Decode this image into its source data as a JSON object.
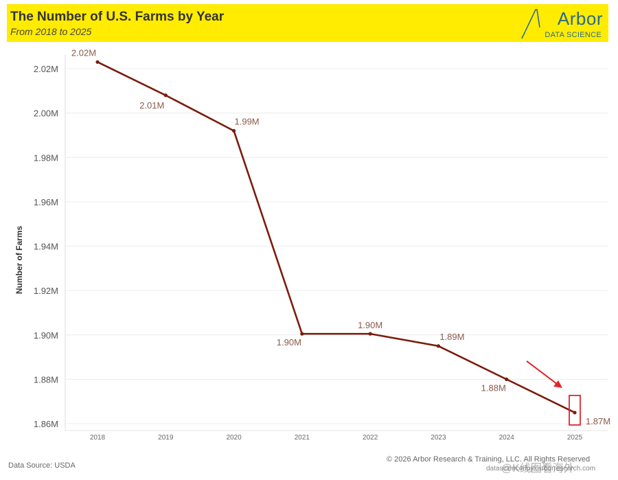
{
  "banner": {
    "title": "The Number of U.S. Farms by Year",
    "subtitle": "From 2018 to 2025",
    "background": "#ffec00"
  },
  "logo": {
    "word": "Arbor",
    "sub": "DATA SCIENCE",
    "color": "#2a6a8c"
  },
  "footer": {
    "source": "Data Source: USDA",
    "copyright": "© 2026 Arbor Research & Training, LLC. All Rights Reserved",
    "site": "datasciencedojo.arborresearch.com",
    "watermark": "@K线图看海外"
  },
  "chart_data": {
    "type": "line",
    "title": "The Number of U.S. Farms by Year",
    "subtitle": "From 2018 to 2025",
    "xlabel": "",
    "ylabel": "Number of Farms",
    "categories": [
      "2018",
      "2019",
      "2020",
      "2021",
      "2022",
      "2023",
      "2024",
      "2025"
    ],
    "values": [
      2.023,
      2.008,
      1.992,
      1.9005,
      1.9005,
      1.895,
      1.88,
      1.865
    ],
    "data_labels": [
      "2.02M",
      "2.01M",
      "1.99M",
      "1.90M",
      "1.90M",
      "1.89M",
      "1.88M",
      "1.87M"
    ],
    "ylim": [
      1.86,
      2.02
    ],
    "yticks": [
      1.86,
      1.88,
      1.9,
      1.92,
      1.94,
      1.96,
      1.98,
      2.0,
      2.02
    ],
    "ytick_labels": [
      "1.86M",
      "1.88M",
      "1.90M",
      "1.92M",
      "1.94M",
      "1.96M",
      "1.98M",
      "2.00M",
      "2.02M"
    ],
    "grid": true,
    "line_color": "#7a1c0c",
    "label_color": "#8b5a4a",
    "highlight": {
      "category": "2025",
      "color": "#e0242a"
    }
  }
}
